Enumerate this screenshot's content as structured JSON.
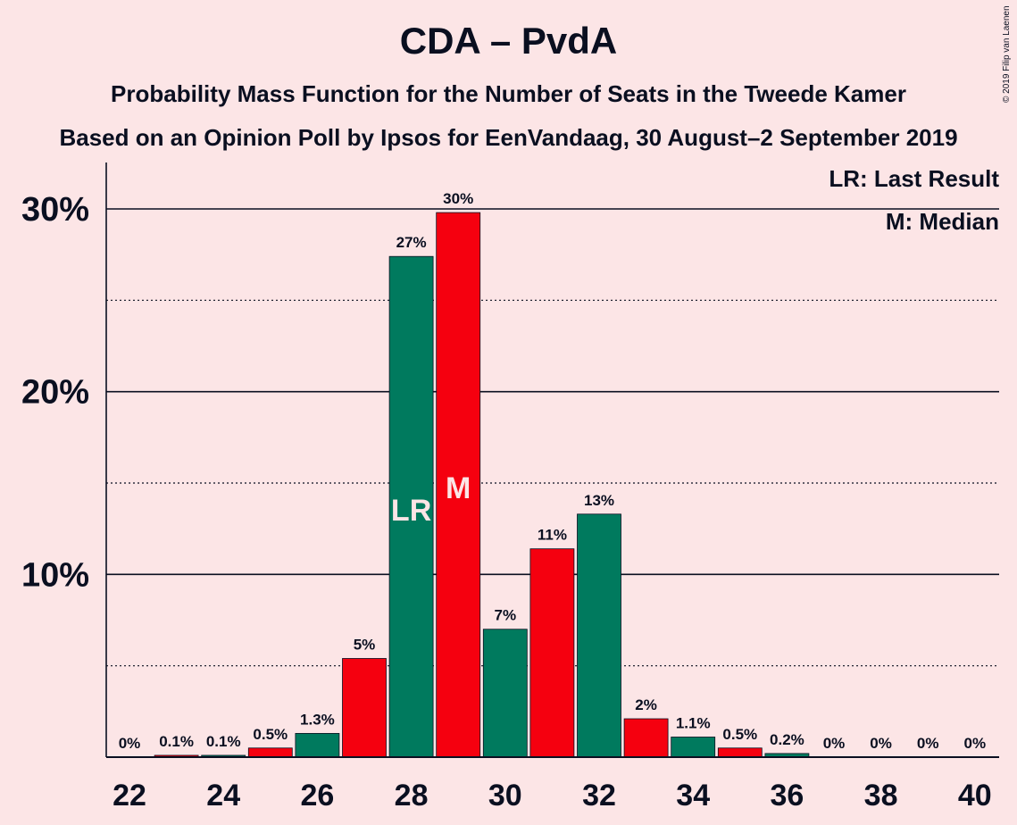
{
  "chart_data": {
    "type": "bar",
    "title": "CDA – PvdA",
    "subtitle_1": "Probability Mass Function for the Number of Seats in the Tweede Kamer",
    "subtitle_2": "Based on an Opinion Poll by Ipsos for EenVandaag, 30 August–2 September 2019",
    "copyright": "© 2019 Filip van Laenen",
    "legend": {
      "lr": "LR: Last Result",
      "median": "M: Median"
    },
    "categories": [
      22,
      23,
      24,
      25,
      26,
      27,
      28,
      29,
      30,
      31,
      32,
      33,
      34,
      35,
      36,
      37,
      38,
      39,
      40
    ],
    "values": [
      0,
      0.1,
      0.1,
      0.5,
      1.3,
      5.4,
      27.4,
      29.8,
      7.0,
      11.4,
      13.3,
      2.1,
      1.1,
      0.5,
      0.2,
      0,
      0,
      0,
      0
    ],
    "value_labels": [
      "0%",
      "0.1%",
      "0.1%",
      "0.5%",
      "1.3%",
      "5%",
      "27%",
      "30%",
      "7%",
      "11%",
      "13%",
      "2%",
      "1.1%",
      "0.5%",
      "0.2%",
      "0%",
      "0%",
      "0%",
      "0%"
    ],
    "last_result_seat": 28,
    "median_seat": 29,
    "last_result_marker": "LR",
    "median_marker": "M",
    "x_ticks": [
      22,
      24,
      26,
      28,
      30,
      32,
      34,
      36,
      38,
      40
    ],
    "y_ticks": [
      10,
      20,
      30
    ],
    "y_tick_labels": [
      "10%",
      "20%",
      "30%"
    ],
    "y_dotted_lines": [
      5,
      15,
      25
    ],
    "ylim": [
      0,
      30
    ],
    "colors": {
      "green": "#007A5E",
      "red": "#F5000F",
      "background": "#FCE5E6",
      "text": "#0A0F20"
    }
  }
}
